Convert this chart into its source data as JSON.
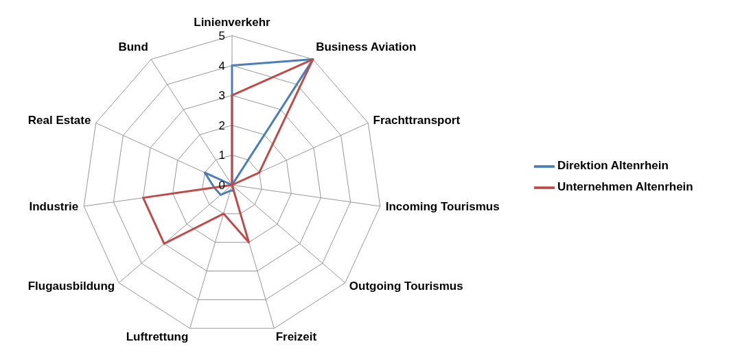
{
  "chart_data": {
    "type": "radar",
    "categories": [
      "Linienverkehr",
      "Business Aviation",
      "Frachttransport",
      "Incoming Tourismus",
      "Outgoing Tourismus",
      "Freizeit",
      "Luftrettung",
      "Flugausbildung",
      "Industrie",
      "Real Estate",
      "Bund"
    ],
    "series": [
      {
        "name": "Direktion Altenrhein",
        "color": "#4a7ebb",
        "values": [
          4,
          5,
          0,
          0,
          0,
          0.2,
          0.2,
          0.5,
          0.6,
          1,
          0
        ]
      },
      {
        "name": "Unternehmen Altenrhein",
        "color": "#be4b48",
        "values": [
          3,
          5,
          1,
          0,
          0,
          2,
          1,
          3,
          3,
          0,
          0
        ]
      }
    ],
    "ylim": [
      0,
      5
    ],
    "yticks": [
      0,
      1,
      2,
      3,
      4,
      5
    ],
    "grid": true,
    "legend": "right"
  }
}
